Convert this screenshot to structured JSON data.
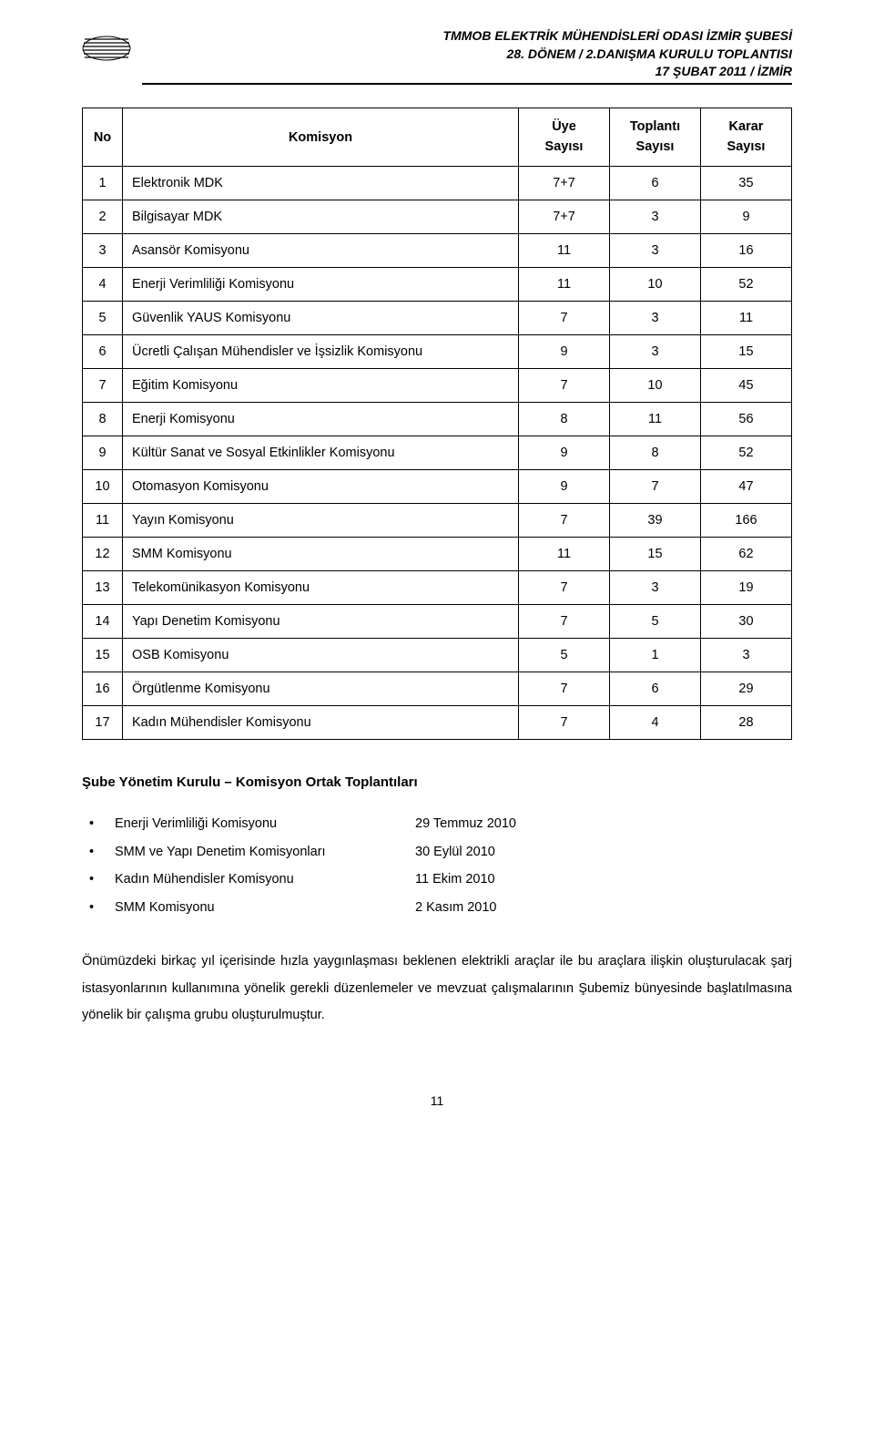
{
  "header": {
    "line1": "TMMOB ELEKTRİK MÜHENDİSLERİ ODASI İZMİR ŞUBESİ",
    "line2": "28. DÖNEM / 2.DANIŞMA KURULU TOPLANTISI",
    "line3": "17 ŞUBAT 2011 / İZMİR"
  },
  "table": {
    "headers": {
      "no": "No",
      "name": "Komisyon",
      "col1_top": "Üye",
      "col1_bot": "Sayısı",
      "col2_top": "Toplantı",
      "col2_bot": "Sayısı",
      "col3_top": "Karar",
      "col3_bot": "Sayısı"
    },
    "rows": [
      {
        "no": "1",
        "name": "Elektronik MDK",
        "c1": "7+7",
        "c2": "6",
        "c3": "35"
      },
      {
        "no": "2",
        "name": "Bilgisayar MDK",
        "c1": "7+7",
        "c2": "3",
        "c3": "9"
      },
      {
        "no": "3",
        "name": "Asansör Komisyonu",
        "c1": "11",
        "c2": "3",
        "c3": "16"
      },
      {
        "no": "4",
        "name": "Enerji Verimliliği Komisyonu",
        "c1": "11",
        "c2": "10",
        "c3": "52"
      },
      {
        "no": "5",
        "name": "Güvenlik YAUS Komisyonu",
        "c1": "7",
        "c2": "3",
        "c3": "11"
      },
      {
        "no": "6",
        "name": "Ücretli Çalışan Mühendisler ve İşsizlik Komisyonu",
        "c1": "9",
        "c2": "3",
        "c3": "15"
      },
      {
        "no": "7",
        "name": "Eğitim Komisyonu",
        "c1": "7",
        "c2": "10",
        "c3": "45"
      },
      {
        "no": "8",
        "name": "Enerji Komisyonu",
        "c1": "8",
        "c2": "11",
        "c3": "56"
      },
      {
        "no": "9",
        "name": "Kültür Sanat ve Sosyal Etkinlikler Komisyonu",
        "c1": "9",
        "c2": "8",
        "c3": "52"
      },
      {
        "no": "10",
        "name": "Otomasyon Komisyonu",
        "c1": "9",
        "c2": "7",
        "c3": "47"
      },
      {
        "no": "11",
        "name": "Yayın Komisyonu",
        "c1": "7",
        "c2": "39",
        "c3": "166"
      },
      {
        "no": "12",
        "name": "SMM Komisyonu",
        "c1": "11",
        "c2": "15",
        "c3": "62"
      },
      {
        "no": "13",
        "name": "Telekomünikasyon Komisyonu",
        "c1": "7",
        "c2": "3",
        "c3": "19"
      },
      {
        "no": "14",
        "name": "Yapı Denetim Komisyonu",
        "c1": "7",
        "c2": "5",
        "c3": "30"
      },
      {
        "no": "15",
        "name": "OSB Komisyonu",
        "c1": "5",
        "c2": "1",
        "c3": "3"
      },
      {
        "no": "16",
        "name": "Örgütlenme Komisyonu",
        "c1": "7",
        "c2": "6",
        "c3": "29"
      },
      {
        "no": "17",
        "name": "Kadın Mühendisler Komisyonu",
        "c1": "7",
        "c2": "4",
        "c3": "28"
      }
    ]
  },
  "section_title": "Şube Yönetim Kurulu – Komisyon Ortak Toplantıları",
  "meetings": [
    {
      "name": "Enerji Verimliliği Komisyonu",
      "date": "29 Temmuz 2010"
    },
    {
      "name": "SMM ve Yapı Denetim Komisyonları",
      "date": "30 Eylül 2010"
    },
    {
      "name": "Kadın Mühendisler Komisyonu",
      "date": "11 Ekim 2010"
    },
    {
      "name": "SMM Komisyonu",
      "date": "2 Kasım 2010"
    }
  ],
  "paragraph": "Önümüzdeki birkaç yıl içerisinde hızla yaygınlaşması beklenen elektrikli araçlar ile bu araçlara ilişkin oluşturulacak şarj istasyonlarının kullanımına yönelik gerekli düzenlemeler ve mevzuat çalışmalarının Şubemiz bünyesinde başlatılmasına yönelik bir çalışma grubu oluşturulmuştur.",
  "page_number": "11"
}
